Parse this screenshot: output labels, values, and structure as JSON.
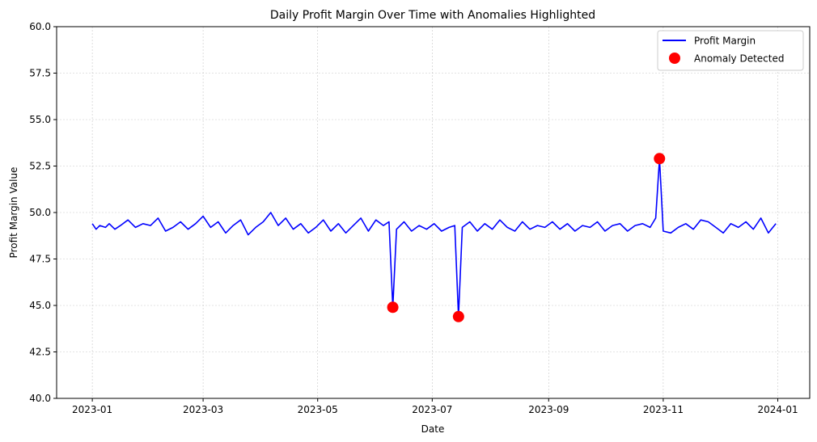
{
  "chart_data": {
    "type": "line",
    "title": "Daily Profit Margin Over Time with Anomalies Highlighted",
    "xlabel": "Date",
    "ylabel": "Profit Margin Value",
    "xlim": [
      "2022-12-13",
      "2024-01-18"
    ],
    "ylim": [
      40,
      60
    ],
    "x_ticks": [
      "2023-01",
      "2023-03",
      "2023-05",
      "2023-07",
      "2023-09",
      "2023-11",
      "2024-01"
    ],
    "y_ticks": [
      "40.0",
      "42.5",
      "45.0",
      "47.5",
      "50.0",
      "52.5",
      "55.0",
      "57.5",
      "60.0"
    ],
    "grid": true,
    "legend_position": "top-right",
    "series": [
      {
        "name": "Profit Margin",
        "kind": "line",
        "color": "#0000ff",
        "x": [
          "2023-01-01",
          "2023-01-03",
          "2023-01-05",
          "2023-01-08",
          "2023-01-10",
          "2023-01-13",
          "2023-01-16",
          "2023-01-20",
          "2023-01-24",
          "2023-01-28",
          "2023-02-01",
          "2023-02-05",
          "2023-02-09",
          "2023-02-13",
          "2023-02-17",
          "2023-02-21",
          "2023-02-25",
          "2023-03-01",
          "2023-03-05",
          "2023-03-09",
          "2023-03-13",
          "2023-03-17",
          "2023-03-21",
          "2023-03-25",
          "2023-03-29",
          "2023-04-02",
          "2023-04-06",
          "2023-04-10",
          "2023-04-14",
          "2023-04-18",
          "2023-04-22",
          "2023-04-26",
          "2023-04-30",
          "2023-05-04",
          "2023-05-08",
          "2023-05-12",
          "2023-05-16",
          "2023-05-20",
          "2023-05-24",
          "2023-05-28",
          "2023-06-01",
          "2023-06-05",
          "2023-06-08",
          "2023-06-10",
          "2023-06-12",
          "2023-06-16",
          "2023-06-20",
          "2023-06-24",
          "2023-06-28",
          "2023-07-02",
          "2023-07-06",
          "2023-07-10",
          "2023-07-13",
          "2023-07-15",
          "2023-07-17",
          "2023-07-21",
          "2023-07-25",
          "2023-07-29",
          "2023-08-02",
          "2023-08-06",
          "2023-08-10",
          "2023-08-14",
          "2023-08-18",
          "2023-08-22",
          "2023-08-26",
          "2023-08-30",
          "2023-09-03",
          "2023-09-07",
          "2023-09-11",
          "2023-09-15",
          "2023-09-19",
          "2023-09-23",
          "2023-09-27",
          "2023-10-01",
          "2023-10-05",
          "2023-10-09",
          "2023-10-13",
          "2023-10-17",
          "2023-10-21",
          "2023-10-25",
          "2023-10-28",
          "2023-10-30",
          "2023-11-01",
          "2023-11-05",
          "2023-11-09",
          "2023-11-13",
          "2023-11-17",
          "2023-11-21",
          "2023-11-25",
          "2023-11-29",
          "2023-12-03",
          "2023-12-07",
          "2023-12-11",
          "2023-12-15",
          "2023-12-19",
          "2023-12-23",
          "2023-12-27",
          "2023-12-31"
        ],
        "y": [
          49.4,
          49.1,
          49.3,
          49.2,
          49.4,
          49.1,
          49.3,
          49.6,
          49.2,
          49.4,
          49.3,
          49.7,
          49.0,
          49.2,
          49.5,
          49.1,
          49.4,
          49.8,
          49.2,
          49.5,
          48.9,
          49.3,
          49.6,
          48.8,
          49.2,
          49.5,
          50.0,
          49.3,
          49.7,
          49.1,
          49.4,
          48.9,
          49.2,
          49.6,
          49.0,
          49.4,
          48.9,
          49.3,
          49.7,
          49.0,
          49.6,
          49.3,
          49.5,
          44.9,
          49.1,
          49.5,
          49.0,
          49.3,
          49.1,
          49.4,
          49.0,
          49.2,
          49.3,
          44.4,
          49.2,
          49.5,
          49.0,
          49.4,
          49.1,
          49.6,
          49.2,
          49.0,
          49.5,
          49.1,
          49.3,
          49.2,
          49.5,
          49.1,
          49.4,
          49.0,
          49.3,
          49.2,
          49.5,
          49.0,
          49.3,
          49.4,
          49.0,
          49.3,
          49.4,
          49.2,
          49.7,
          52.9,
          49.0,
          48.9,
          49.2,
          49.4,
          49.1,
          49.6,
          49.5,
          49.2,
          48.9,
          49.4,
          49.2,
          49.5,
          49.1,
          49.7,
          48.9,
          49.4
        ]
      },
      {
        "name": "Anomaly Detected",
        "kind": "scatter",
        "color": "#ff0000",
        "x": [
          "2023-06-10",
          "2023-07-15",
          "2023-10-30"
        ],
        "y": [
          44.9,
          44.4,
          52.9
        ]
      }
    ]
  }
}
